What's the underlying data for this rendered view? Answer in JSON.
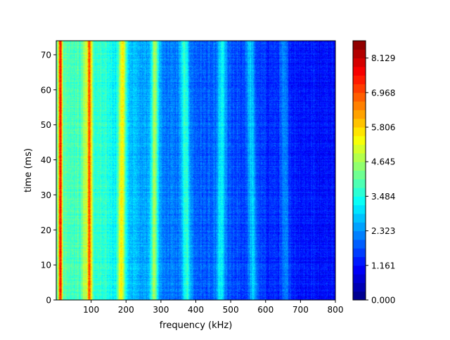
{
  "chart_data": {
    "type": "heatmap",
    "title": "",
    "xlabel": "frequency (kHz)",
    "ylabel": "time (ms)",
    "xlim": [
      0,
      800
    ],
    "ylim": [
      0,
      74
    ],
    "x_ticks": [
      100,
      200,
      300,
      400,
      500,
      600,
      700,
      800
    ],
    "y_ticks": [
      0,
      10,
      20,
      30,
      40,
      50,
      60,
      70
    ],
    "colormap": "jet",
    "colorbar": {
      "min": 0.0,
      "max": 8.71,
      "levels": 30,
      "ticks": [
        0.0,
        1.161,
        2.323,
        3.484,
        4.645,
        5.806,
        6.968,
        8.129
      ],
      "tick_labels": [
        "0.000",
        "1.161",
        "2.323",
        "3.484",
        "4.645",
        "5.806",
        "6.968",
        "8.129"
      ]
    },
    "background_profile": [
      {
        "f": 0,
        "v": 4.0
      },
      {
        "f": 60,
        "v": 3.9
      },
      {
        "f": 150,
        "v": 3.5
      },
      {
        "f": 210,
        "v": 2.8
      },
      {
        "f": 300,
        "v": 2.2
      },
      {
        "f": 400,
        "v": 1.9
      },
      {
        "f": 500,
        "v": 1.7
      },
      {
        "f": 600,
        "v": 1.5
      },
      {
        "f": 700,
        "v": 1.3
      },
      {
        "f": 800,
        "v": 1.2
      }
    ],
    "harmonic_lines": [
      {
        "f_start": 12,
        "f_end": 12,
        "width": 4,
        "peak": 7.6
      },
      {
        "f_start": 95,
        "f_end": 95,
        "width": 5,
        "peak": 7.0
      },
      {
        "f_start": 82,
        "f_end": 84,
        "width": 5,
        "peak": 5.0
      },
      {
        "f_start": 186,
        "f_end": 190,
        "width": 7,
        "peak": 5.6
      },
      {
        "f_start": 280,
        "f_end": 283,
        "width": 8,
        "peak": 4.6
      },
      {
        "f_start": 375,
        "f_end": 367,
        "width": 9,
        "peak": 3.6
      },
      {
        "f_start": 471,
        "f_end": 476,
        "width": 9,
        "peak": 3.2
      },
      {
        "f_start": 565,
        "f_end": 555,
        "width": 9,
        "peak": 2.8
      },
      {
        "f_start": 660,
        "f_end": 652,
        "width": 9,
        "peak": 2.1
      }
    ]
  }
}
